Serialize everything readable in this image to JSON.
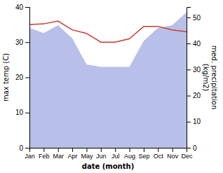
{
  "chart_data": {
    "type": "line",
    "x_label": "date (month)",
    "y_label": "max temp (C)",
    "y2_label": "med. precipitation\n(kg/m2)",
    "categories": [
      "Jan",
      "Feb",
      "Mar",
      "Apr",
      "May",
      "Jun",
      "Jul",
      "Aug",
      "Sep",
      "Oct",
      "Nov",
      "Dec"
    ],
    "series": [
      {
        "type": "area",
        "axis": "y2",
        "color": "#b8bfe8",
        "values": [
          46.0,
          44.0,
          47.0,
          42.0,
          32.0,
          31.0,
          31.0,
          31.0,
          41.0,
          46.0,
          47.0,
          52.0
        ]
      },
      {
        "type": "line",
        "color": "#c93b2e",
        "values": [
          35.0,
          35.2,
          36.0,
          33.5,
          32.5,
          30.0,
          30.0,
          31.0,
          34.5,
          34.5,
          33.5,
          33.0
        ]
      }
    ],
    "ylim": [
      0,
      40
    ],
    "yticks": [
      0,
      10,
      20,
      30,
      40
    ],
    "y2lim": [
      0,
      54
    ],
    "y2ticks": [
      0,
      10,
      20,
      30,
      40,
      50
    ]
  }
}
